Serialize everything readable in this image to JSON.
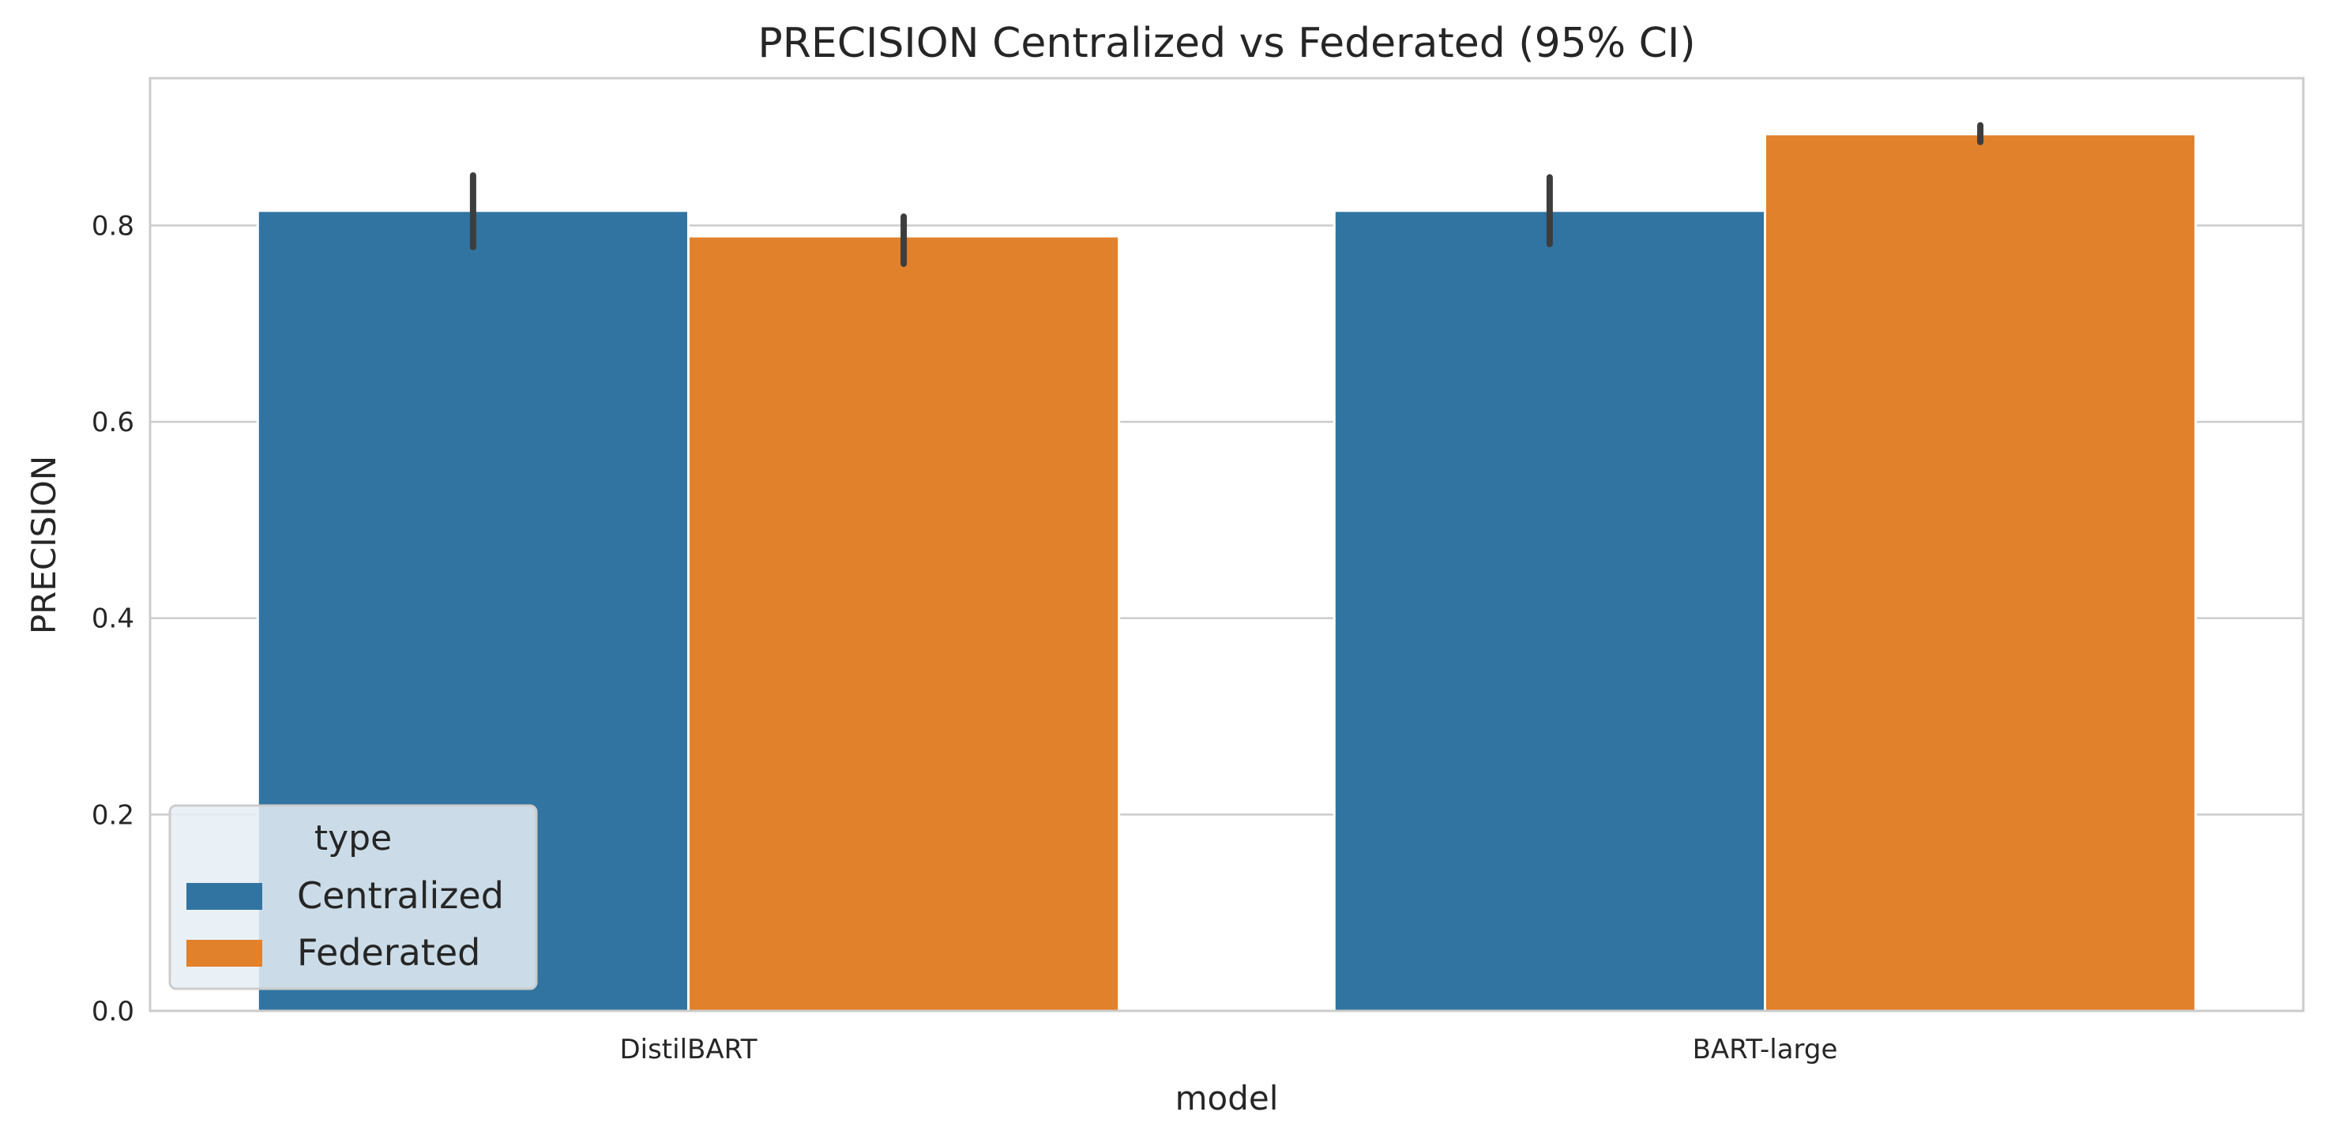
{
  "chart_data": {
    "type": "bar",
    "title": "PRECISION Centralized vs Federated (95% CI)",
    "xlabel": "model",
    "ylabel": "PRECISION",
    "categories": [
      "DistilBART",
      "BART-large"
    ],
    "series": [
      {
        "name": "Centralized",
        "color": "#3274a1",
        "values": [
          0.815,
          0.815
        ],
        "ci": [
          [
            0.778,
            0.851
          ],
          [
            0.781,
            0.849
          ]
        ]
      },
      {
        "name": "Federated",
        "color": "#e1812c",
        "values": [
          0.789,
          0.893
        ],
        "ci": [
          [
            0.761,
            0.809
          ],
          [
            0.885,
            0.902
          ]
        ]
      }
    ],
    "ylim": [
      0,
      0.95
    ],
    "yticks": [
      "0.0",
      "0.2",
      "0.4",
      "0.6",
      "0.8"
    ],
    "grid": true,
    "legend": {
      "title": "type",
      "placement": "lower-left"
    },
    "error_bar_color": "#3d3d3d"
  }
}
